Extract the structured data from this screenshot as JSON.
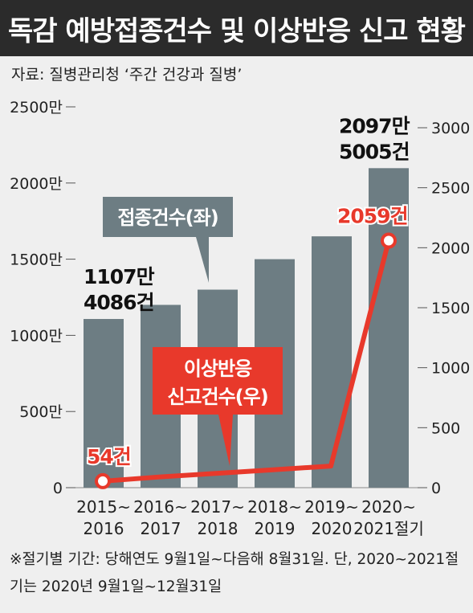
{
  "title": "독감 예방접종건수 및 이상반응 신고 현황",
  "source": "자료: 질병관리청 ‘주간 건강과 질병’",
  "footnote": "※절기별 기간: 당해연도 9월1일~다음해 8월31일. 단, 2020~2021절기는 2020년 9월1일~12월31일",
  "colors": {
    "bar": "#6d7d83",
    "line": "#e8392b",
    "background": "#efefef",
    "title_bg": "#2b2b2b",
    "text": "#222222"
  },
  "chart_data": {
    "type": "bar+line",
    "categories": [
      "2015~2016",
      "2016~2017",
      "2017~2018",
      "2018~2019",
      "2019~2020",
      "2020~2021절기"
    ],
    "category_lines": [
      [
        "2015~",
        "2016"
      ],
      [
        "2016~",
        "2017"
      ],
      [
        "2017~",
        "2018"
      ],
      [
        "2018~",
        "2019"
      ],
      [
        "2019~",
        "2020"
      ],
      [
        "2020~",
        "2021절기"
      ]
    ],
    "series": [
      {
        "name": "접종건수(좌)",
        "axis": "left",
        "kind": "bar",
        "values_man": [
          1107.4086,
          1200,
          1300,
          1500,
          1650,
          2097.5005
        ]
      },
      {
        "name": "이상반응 신고건수(우)",
        "axis": "right",
        "kind": "line",
        "values": [
          54,
          90,
          120,
          150,
          180,
          2059
        ]
      }
    ],
    "left_axis": {
      "ylim": [
        0,
        2500
      ],
      "ticks": [
        0,
        500,
        1000,
        1500,
        2000,
        2500
      ],
      "tick_labels": [
        "0",
        "500만",
        "1000만",
        "1500만",
        "2000만",
        "2500만"
      ]
    },
    "right_axis": {
      "ylim": [
        0,
        3000
      ],
      "ticks": [
        0,
        500,
        1000,
        1500,
        2000,
        2500,
        3000
      ],
      "tick_labels": [
        "0",
        "500",
        "1000",
        "1500",
        "2000",
        "2500",
        "3000"
      ]
    },
    "annotations": {
      "first_bar": [
        "1107만",
        "4086건"
      ],
      "last_bar": [
        "2097만",
        "5005건"
      ],
      "first_point": "54건",
      "last_point": "2059건"
    },
    "callouts": {
      "bar_series": "접종건수(좌)",
      "line_series": [
        "이상반응",
        "신고건수(우)"
      ]
    }
  }
}
